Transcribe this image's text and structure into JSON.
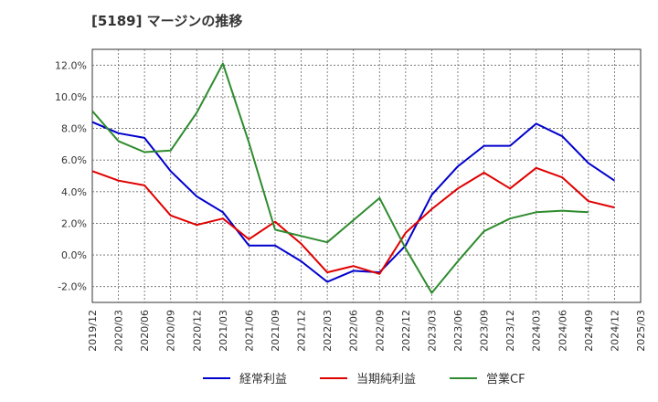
{
  "chart_data": {
    "type": "line",
    "title": "[5189]  マージンの推移",
    "xlabel": "",
    "ylabel": "",
    "ylim": [
      -3,
      13
    ],
    "y_ticks": [
      -2,
      0,
      2,
      4,
      6,
      8,
      10,
      12
    ],
    "y_tick_labels": [
      "-2.0%",
      "0.0%",
      "2.0%",
      "4.0%",
      "6.0%",
      "8.0%",
      "10.0%",
      "12.0%"
    ],
    "categories": [
      "2019/12",
      "2020/03",
      "2020/06",
      "2020/09",
      "2020/12",
      "2021/03",
      "2021/06",
      "2021/09",
      "2021/12",
      "2022/03",
      "2022/06",
      "2022/09",
      "2022/12",
      "2023/03",
      "2023/06",
      "2023/09",
      "2023/12",
      "2024/03",
      "2024/06",
      "2024/09",
      "2024/12",
      "2025/03"
    ],
    "grid": true,
    "legend_position": "bottom",
    "series": [
      {
        "name": "経常利益",
        "color": "#0000cc",
        "values": [
          8.4,
          7.7,
          7.4,
          5.3,
          3.7,
          2.7,
          0.6,
          0.6,
          -0.4,
          -1.7,
          -1.0,
          -1.1,
          0.6,
          3.8,
          5.6,
          6.9,
          6.9,
          8.3,
          7.5,
          5.8,
          4.7,
          null
        ]
      },
      {
        "name": "当期純利益",
        "color": "#e00000",
        "values": [
          5.3,
          4.7,
          4.4,
          2.5,
          1.9,
          2.3,
          1.0,
          2.1,
          0.7,
          -1.1,
          -0.7,
          -1.2,
          1.4,
          2.9,
          4.2,
          5.2,
          4.2,
          5.5,
          4.9,
          3.4,
          3.0,
          null
        ]
      },
      {
        "name": "営業CF",
        "color": "#2e8b2e",
        "values": [
          9.1,
          7.2,
          6.5,
          6.6,
          9.0,
          12.1,
          7.1,
          1.6,
          1.2,
          0.8,
          2.2,
          3.6,
          0.4,
          -2.4,
          -0.4,
          1.5,
          2.3,
          2.7,
          2.8,
          2.7,
          null,
          null
        ]
      }
    ]
  }
}
